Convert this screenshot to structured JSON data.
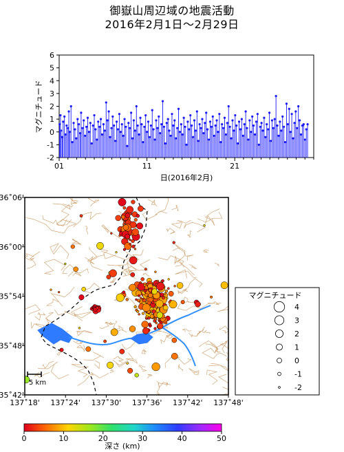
{
  "header": {
    "title_line1": "御嶽山周辺域の地震活動",
    "title_line2": "2016年2月1日～2月29日"
  },
  "chart_data": [
    {
      "type": "line",
      "subtype": "stem",
      "title": "",
      "xlabel": "日(2016年2月)",
      "ylabel": "マグニチュード",
      "x_ticks": [
        "01",
        "11",
        "21"
      ],
      "x_range_days": [
        1,
        30
      ],
      "y_ticks": [
        -2,
        -1,
        0,
        1,
        2,
        3,
        4,
        5,
        6
      ],
      "ylim": [
        -2,
        6
      ],
      "baseline": -2,
      "color": "#1a1aff",
      "events": [
        {
          "day": 1.05,
          "mag": 0.6
        },
        {
          "day": 1.15,
          "mag": 1.3
        },
        {
          "day": 1.22,
          "mag": 0.1
        },
        {
          "day": 1.35,
          "mag": -0.4
        },
        {
          "day": 1.45,
          "mag": 0.8
        },
        {
          "day": 1.6,
          "mag": 1.2
        },
        {
          "day": 1.72,
          "mag": -0.2
        },
        {
          "day": 1.85,
          "mag": 0.5
        },
        {
          "day": 2.0,
          "mag": 0.3
        },
        {
          "day": 2.1,
          "mag": 1.6
        },
        {
          "day": 2.2,
          "mag": 0.0
        },
        {
          "day": 2.35,
          "mag": 2.0
        },
        {
          "day": 2.5,
          "mag": -0.8
        },
        {
          "day": 2.65,
          "mag": 0.7
        },
        {
          "day": 2.8,
          "mag": 0.2
        },
        {
          "day": 2.95,
          "mag": -0.5
        },
        {
          "day": 3.1,
          "mag": 1.0
        },
        {
          "day": 3.25,
          "mag": 0.6
        },
        {
          "day": 3.4,
          "mag": -0.1
        },
        {
          "day": 3.5,
          "mag": 1.5
        },
        {
          "day": 3.65,
          "mag": 0.3
        },
        {
          "day": 3.8,
          "mag": 0.9
        },
        {
          "day": 3.95,
          "mag": -0.3
        },
        {
          "day": 4.1,
          "mag": 0.4
        },
        {
          "day": 4.25,
          "mag": 1.1
        },
        {
          "day": 4.4,
          "mag": 0.0
        },
        {
          "day": 4.55,
          "mag": 0.7
        },
        {
          "day": 4.7,
          "mag": -0.9
        },
        {
          "day": 4.85,
          "mag": 0.5
        },
        {
          "day": 5.0,
          "mag": 1.3
        },
        {
          "day": 5.15,
          "mag": 0.2
        },
        {
          "day": 5.3,
          "mag": -0.6
        },
        {
          "day": 5.45,
          "mag": 0.8
        },
        {
          "day": 5.6,
          "mag": 0.4
        },
        {
          "day": 5.75,
          "mag": 1.0
        },
        {
          "day": 5.9,
          "mag": -0.2
        },
        {
          "day": 6.05,
          "mag": 0.6
        },
        {
          "day": 6.2,
          "mag": 0.1
        },
        {
          "day": 6.35,
          "mag": 2.3
        },
        {
          "day": 6.5,
          "mag": 0.9
        },
        {
          "day": 6.65,
          "mag": 1.6
        },
        {
          "day": 6.8,
          "mag": -0.4
        },
        {
          "day": 6.95,
          "mag": 0.3
        },
        {
          "day": 7.1,
          "mag": 1.2
        },
        {
          "day": 7.25,
          "mag": 0.5
        },
        {
          "day": 7.4,
          "mag": -0.7
        },
        {
          "day": 7.55,
          "mag": 0.8
        },
        {
          "day": 7.7,
          "mag": 0.2
        },
        {
          "day": 7.85,
          "mag": 1.4
        },
        {
          "day": 8.0,
          "mag": 0.0
        },
        {
          "day": 8.15,
          "mag": 0.6
        },
        {
          "day": 8.3,
          "mag": -0.3
        },
        {
          "day": 8.45,
          "mag": 1.0
        },
        {
          "day": 8.6,
          "mag": 0.4
        },
        {
          "day": 8.75,
          "mag": -1.1
        },
        {
          "day": 8.9,
          "mag": 0.7
        },
        {
          "day": 9.05,
          "mag": 0.3
        },
        {
          "day": 9.2,
          "mag": 1.5
        },
        {
          "day": 9.35,
          "mag": -0.5
        },
        {
          "day": 9.5,
          "mag": 0.9
        },
        {
          "day": 9.65,
          "mag": 0.1
        },
        {
          "day": 9.8,
          "mag": 2.0
        },
        {
          "day": 9.95,
          "mag": 0.5
        },
        {
          "day": 10.1,
          "mag": -0.2
        },
        {
          "day": 10.25,
          "mag": 1.1
        },
        {
          "day": 10.4,
          "mag": 0.6
        },
        {
          "day": 10.55,
          "mag": -0.8
        },
        {
          "day": 10.7,
          "mag": 0.4
        },
        {
          "day": 10.85,
          "mag": 1.3
        },
        {
          "day": 11.0,
          "mag": 0.0
        },
        {
          "day": 11.15,
          "mag": 0.8
        },
        {
          "day": 11.3,
          "mag": -0.4
        },
        {
          "day": 11.45,
          "mag": 0.5
        },
        {
          "day": 11.6,
          "mag": 1.7
        },
        {
          "day": 11.75,
          "mag": 0.2
        },
        {
          "day": 11.9,
          "mag": -0.6
        },
        {
          "day": 12.05,
          "mag": 0.9
        },
        {
          "day": 12.2,
          "mag": 0.3
        },
        {
          "day": 12.35,
          "mag": 1.2
        },
        {
          "day": 12.5,
          "mag": -0.1
        },
        {
          "day": 12.65,
          "mag": 0.6
        },
        {
          "day": 12.8,
          "mag": 2.4
        },
        {
          "day": 12.95,
          "mag": 0.4
        },
        {
          "day": 13.1,
          "mag": -0.9
        },
        {
          "day": 13.25,
          "mag": 0.7
        },
        {
          "day": 13.4,
          "mag": 1.0
        },
        {
          "day": 13.55,
          "mag": 0.1
        },
        {
          "day": 13.7,
          "mag": -0.3
        },
        {
          "day": 13.85,
          "mag": 1.4
        },
        {
          "day": 14.0,
          "mag": 0.5
        },
        {
          "day": 14.15,
          "mag": 0.9
        },
        {
          "day": 14.3,
          "mag": -0.5
        },
        {
          "day": 14.45,
          "mag": 0.3
        },
        {
          "day": 14.6,
          "mag": 1.8
        },
        {
          "day": 14.75,
          "mag": 0.0
        },
        {
          "day": 14.9,
          "mag": 0.6
        },
        {
          "day": 15.05,
          "mag": -0.2
        },
        {
          "day": 15.2,
          "mag": 1.1
        },
        {
          "day": 15.35,
          "mag": 0.4
        },
        {
          "day": 15.5,
          "mag": -1.0
        },
        {
          "day": 15.65,
          "mag": 0.8
        },
        {
          "day": 15.8,
          "mag": 0.2
        },
        {
          "day": 15.95,
          "mag": 1.3
        },
        {
          "day": 16.1,
          "mag": 0.5
        },
        {
          "day": 16.25,
          "mag": -0.4
        },
        {
          "day": 16.4,
          "mag": 0.9
        },
        {
          "day": 16.55,
          "mag": 0.1
        },
        {
          "day": 16.7,
          "mag": 1.6
        },
        {
          "day": 16.85,
          "mag": -0.7
        },
        {
          "day": 17.0,
          "mag": 0.6
        },
        {
          "day": 17.15,
          "mag": 0.3
        },
        {
          "day": 17.3,
          "mag": 1.0
        },
        {
          "day": 17.45,
          "mag": -0.1
        },
        {
          "day": 17.6,
          "mag": 0.7
        },
        {
          "day": 17.75,
          "mag": 1.5
        },
        {
          "day": 17.9,
          "mag": 0.2
        },
        {
          "day": 18.05,
          "mag": -0.6
        },
        {
          "day": 18.2,
          "mag": 0.8
        },
        {
          "day": 18.35,
          "mag": 0.4
        },
        {
          "day": 18.5,
          "mag": 1.2
        },
        {
          "day": 18.65,
          "mag": -0.3
        },
        {
          "day": 18.8,
          "mag": 0.5
        },
        {
          "day": 18.95,
          "mag": 0.9
        },
        {
          "day": 19.1,
          "mag": 0.0
        },
        {
          "day": 19.25,
          "mag": 1.4
        },
        {
          "day": 19.4,
          "mag": -0.8
        },
        {
          "day": 19.55,
          "mag": 0.6
        },
        {
          "day": 19.7,
          "mag": 0.3
        },
        {
          "day": 19.85,
          "mag": 1.1
        },
        {
          "day": 20.0,
          "mag": -0.2
        },
        {
          "day": 20.15,
          "mag": 0.7
        },
        {
          "day": 20.3,
          "mag": 2.0
        },
        {
          "day": 20.45,
          "mag": 0.4
        },
        {
          "day": 20.6,
          "mag": -0.5
        },
        {
          "day": 20.75,
          "mag": 0.9
        },
        {
          "day": 20.9,
          "mag": 0.1
        },
        {
          "day": 21.05,
          "mag": 1.3
        },
        {
          "day": 21.2,
          "mag": 0.5
        },
        {
          "day": 21.35,
          "mag": -0.9
        },
        {
          "day": 21.5,
          "mag": 0.8
        },
        {
          "day": 21.65,
          "mag": 0.2
        },
        {
          "day": 21.8,
          "mag": 1.0
        },
        {
          "day": 21.95,
          "mag": -0.3
        },
        {
          "day": 22.1,
          "mag": 0.6
        },
        {
          "day": 22.25,
          "mag": 1.6
        },
        {
          "day": 22.4,
          "mag": 0.3
        },
        {
          "day": 22.55,
          "mag": -0.6
        },
        {
          "day": 22.7,
          "mag": 0.9
        },
        {
          "day": 22.85,
          "mag": 0.0
        },
        {
          "day": 23.0,
          "mag": 1.2
        },
        {
          "day": 23.15,
          "mag": 0.5
        },
        {
          "day": 23.3,
          "mag": -0.2
        },
        {
          "day": 23.45,
          "mag": 0.8
        },
        {
          "day": 23.6,
          "mag": 1.4
        },
        {
          "day": 23.75,
          "mag": -1.0
        },
        {
          "day": 23.9,
          "mag": 0.4
        },
        {
          "day": 24.05,
          "mag": 0.7
        },
        {
          "day": 24.2,
          "mag": 0.1
        },
        {
          "day": 24.35,
          "mag": 1.1
        },
        {
          "day": 24.5,
          "mag": -0.4
        },
        {
          "day": 24.65,
          "mag": 0.6
        },
        {
          "day": 24.8,
          "mag": 0.2
        },
        {
          "day": 24.95,
          "mag": 1.5
        },
        {
          "day": 25.1,
          "mag": -0.7
        },
        {
          "day": 25.25,
          "mag": 0.9
        },
        {
          "day": 25.4,
          "mag": 0.3
        },
        {
          "day": 25.55,
          "mag": 1.0
        },
        {
          "day": 25.7,
          "mag": 2.8
        },
        {
          "day": 25.85,
          "mag": 0.5
        },
        {
          "day": 26.0,
          "mag": -0.3
        },
        {
          "day": 26.15,
          "mag": 0.8
        },
        {
          "day": 26.3,
          "mag": 0.1
        },
        {
          "day": 26.45,
          "mag": 1.2
        },
        {
          "day": 26.6,
          "mag": 0.4
        },
        {
          "day": 26.75,
          "mag": -0.8
        },
        {
          "day": 26.9,
          "mag": 2.2
        },
        {
          "day": 27.05,
          "mag": 0.6
        },
        {
          "day": 27.2,
          "mag": 1.8
        },
        {
          "day": 27.35,
          "mag": 0.0
        },
        {
          "day": 27.5,
          "mag": 1.4
        },
        {
          "day": 27.65,
          "mag": -0.5
        },
        {
          "day": 27.8,
          "mag": 0.7
        },
        {
          "day": 27.95,
          "mag": 1.6
        },
        {
          "day": 28.1,
          "mag": 0.3
        },
        {
          "day": 28.25,
          "mag": 2.0
        },
        {
          "day": 28.4,
          "mag": 0.9
        },
        {
          "day": 28.55,
          "mag": -0.2
        },
        {
          "day": 28.7,
          "mag": 0.5
        },
        {
          "day": 28.85,
          "mag": 0.6
        },
        {
          "day": 29.0,
          "mag": -0.6
        },
        {
          "day": 29.15,
          "mag": 0.2
        },
        {
          "day": 29.3,
          "mag": 0.6
        }
      ]
    },
    {
      "type": "scatter",
      "subtype": "map",
      "title": "",
      "x_ticks": [
        "137˚18'",
        "137˚24'",
        "137˚30'",
        "137˚36'",
        "137˚42'",
        "137˚48'"
      ],
      "y_ticks": [
        "35˚42'",
        "35˚48'",
        "35˚54'",
        "36˚00'",
        "36˚06'"
      ],
      "xlim_deg": [
        137.3,
        137.8
      ],
      "ylim_deg": [
        35.7,
        36.1
      ],
      "scale_bar_label": "5 km",
      "colorbar": {
        "label": "深さ (km)",
        "ticks": [
          0,
          10,
          20,
          30,
          40,
          50
        ],
        "range": [
          0,
          50
        ],
        "colors": [
          "#e0001e",
          "#ff6a00",
          "#ffd400",
          "#9ee81c",
          "#2fe06c",
          "#1fd6c8",
          "#1e88ff",
          "#2f3cff",
          "#9a2bff",
          "#ff00e8"
        ]
      },
      "legend": {
        "title": "マグニチュード",
        "entries": [
          "4",
          "3",
          "2",
          "1",
          "0",
          "-1",
          "-2"
        ]
      },
      "clusters": [
        {
          "name": "north",
          "lon": 137.555,
          "lat": 36.045,
          "dlon": 0.035,
          "dlat": 0.055,
          "n": 55,
          "depth": [
            0,
            6
          ],
          "mag": [
            -1,
            2
          ]
        },
        {
          "name": "ontake-main",
          "lon": 137.615,
          "lat": 35.9,
          "dlon": 0.055,
          "dlat": 0.04,
          "n": 150,
          "depth": [
            0,
            11
          ],
          "mag": [
            -1,
            2
          ]
        },
        {
          "name": "ontake-south",
          "lon": 137.63,
          "lat": 35.85,
          "dlon": 0.04,
          "dlat": 0.02,
          "n": 35,
          "depth": [
            0,
            9
          ],
          "mag": [
            -1,
            1.5
          ]
        },
        {
          "name": "west",
          "lon": 137.475,
          "lat": 35.875,
          "dlon": 0.012,
          "dlat": 0.006,
          "n": 25,
          "depth": [
            0,
            2
          ],
          "mag": [
            -1,
            1
          ]
        },
        {
          "name": "east",
          "lon": 137.725,
          "lat": 35.885,
          "dlon": 0.006,
          "dlat": 0.005,
          "n": 6,
          "depth": [
            0,
            2
          ],
          "mag": [
            -1,
            1
          ]
        },
        {
          "name": "scattered",
          "lon": 137.55,
          "lat": 35.9,
          "dlon": 0.25,
          "dlat": 0.2,
          "n": 45,
          "depth": [
            0,
            15
          ],
          "mag": [
            -1,
            2
          ]
        }
      ],
      "events": [
        {
          "lon": 137.485,
          "lat": 36.002,
          "mag": 1.5,
          "depth": 12
        },
        {
          "lon": 137.303,
          "lat": 35.731,
          "mag": 1.5,
          "depth": 17
        },
        {
          "lon": 137.622,
          "lat": 35.757,
          "mag": 2.0,
          "depth": 8
        },
        {
          "lon": 137.52,
          "lat": 35.827,
          "mag": 1.5,
          "depth": 9
        },
        {
          "lon": 137.79,
          "lat": 35.922,
          "mag": 1.5,
          "depth": 10
        }
      ]
    }
  ]
}
